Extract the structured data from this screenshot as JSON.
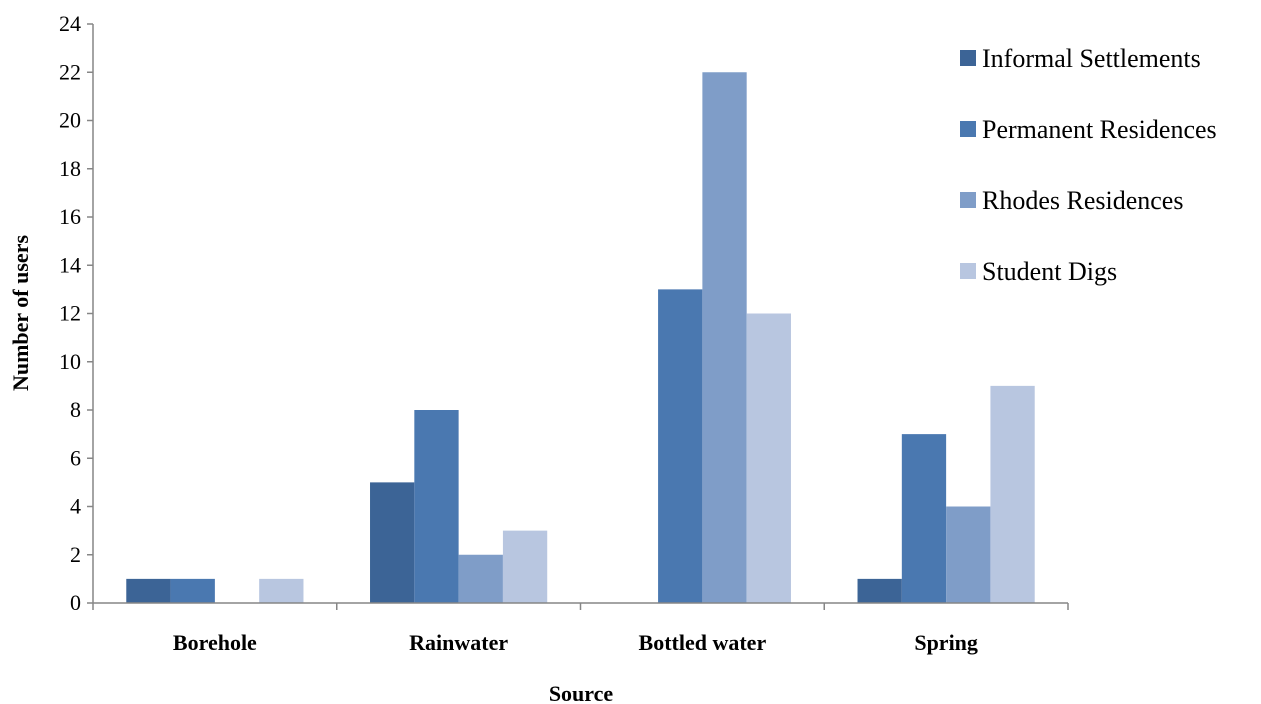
{
  "chart_data": {
    "type": "bar",
    "title": "",
    "xlabel": "Source",
    "ylabel": "Number of users",
    "ylim": [
      0,
      24
    ],
    "yticks": [
      0,
      2,
      4,
      6,
      8,
      10,
      12,
      14,
      16,
      18,
      20,
      22,
      24
    ],
    "grid": false,
    "legend_position": "right",
    "categories": [
      "Borehole",
      "Rainwater",
      "Bottled water",
      "Spring"
    ],
    "series": [
      {
        "name": "Informal Settlements",
        "color": "#3C6496",
        "values": [
          1,
          5,
          0,
          1
        ]
      },
      {
        "name": "Permanent Residences",
        "color": "#4A78B0",
        "values": [
          1,
          8,
          13,
          7
        ]
      },
      {
        "name": "Rhodes Residences",
        "color": "#7F9DC8",
        "values": [
          0,
          2,
          22,
          4
        ]
      },
      {
        "name": "Student Digs",
        "color": "#B8C6E0",
        "values": [
          1,
          3,
          12,
          9
        ]
      }
    ]
  }
}
